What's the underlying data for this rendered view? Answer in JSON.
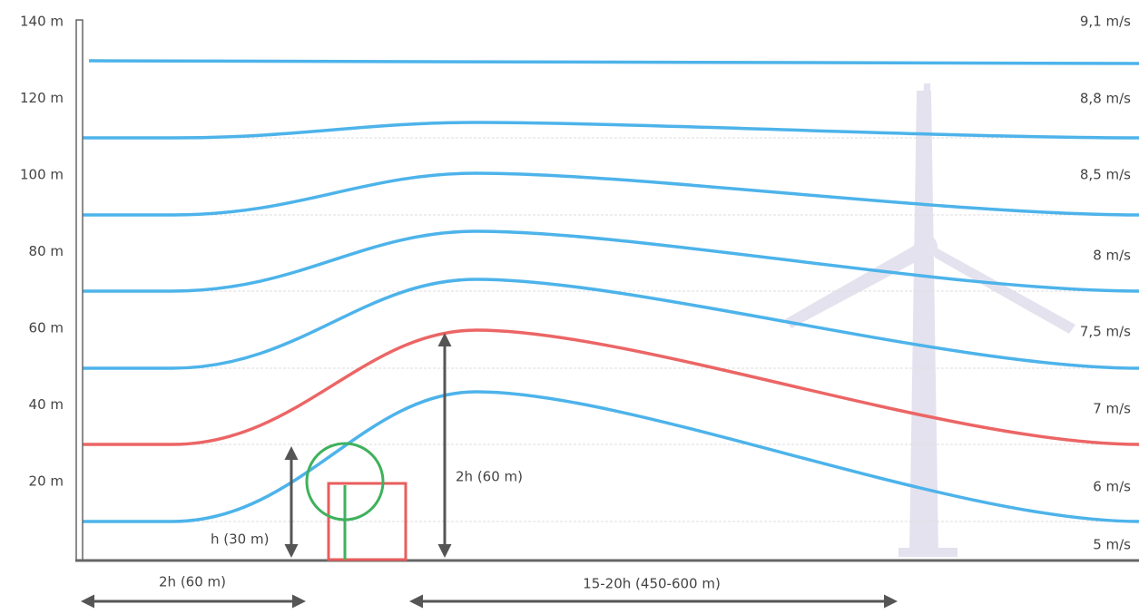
{
  "y_axis": {
    "labels": [
      "140 m",
      "120 m",
      "100 m",
      "80 m",
      "60 m",
      "40 m",
      "20 m"
    ]
  },
  "wind_speeds": [
    "9,1 m/s",
    "8,8 m/s",
    "8,5 m/s",
    "8 m/s",
    "7,5 m/s",
    "7 m/s",
    "6 m/s",
    "5 m/s"
  ],
  "annotations": {
    "obstacle_height": "h (30 m)",
    "disturbed_height": "2h (60 m)",
    "upwind_distance": "2h (60 m)",
    "downwind_distance": "15-20h (450-600 m)"
  }
}
